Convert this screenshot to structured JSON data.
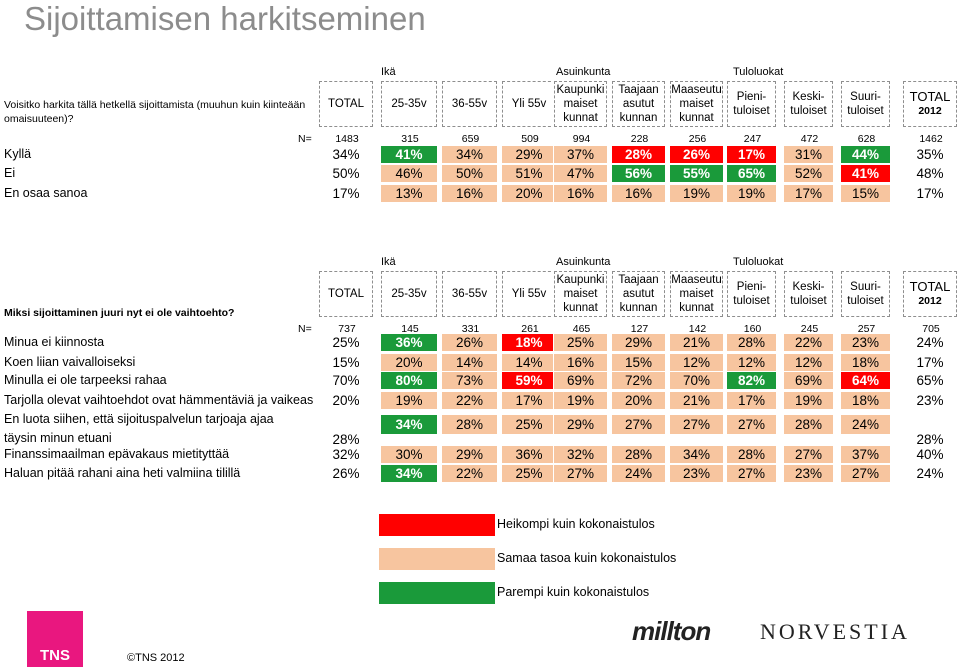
{
  "title": "Sijoittamisen harkitseminen",
  "groups": {
    "age": "Ikä",
    "residence": "Asuinkunta",
    "income": "Tuloluokat"
  },
  "columns": {
    "total": "TOTAL",
    "a1": "25-35v",
    "a2": "36-55v",
    "a3": "Yli 55v",
    "r1": [
      "Kaupunki",
      "maiset",
      "kunnat"
    ],
    "r2": [
      "Taajaan",
      "asutut",
      "kunnan"
    ],
    "r3": [
      "Maaseutu",
      "maiset",
      "kunnat"
    ],
    "i1": [
      "Pieni-",
      "tuloiset"
    ],
    "i2": [
      "Keski-",
      "tuloiset"
    ],
    "i3": [
      "Suuri-",
      "tuloiset"
    ],
    "total2012": [
      "TOTAL",
      "2012"
    ]
  },
  "table1": {
    "question": "Voisitko harkita tällä hetkellä sijoittamista (muuhun kuin kiinteään omaisuuteen)?",
    "n_label": "N=",
    "n": [
      "1483",
      "315",
      "659",
      "509",
      "994",
      "228",
      "256",
      "247",
      "472",
      "628",
      "1462"
    ],
    "rows": [
      {
        "label": "Kyllä",
        "values": [
          "34%",
          "41%",
          "34%",
          "29%",
          "37%",
          "28%",
          "26%",
          "17%",
          "31%",
          "44%",
          "35%"
        ],
        "styles": [
          "n",
          "g",
          "b",
          "b",
          "b",
          "r",
          "r",
          "r",
          "b",
          "g",
          "n"
        ]
      },
      {
        "label": "Ei",
        "values": [
          "50%",
          "46%",
          "50%",
          "51%",
          "47%",
          "56%",
          "55%",
          "65%",
          "52%",
          "41%",
          "48%"
        ],
        "styles": [
          "n",
          "b",
          "b",
          "b",
          "b",
          "g",
          "g",
          "g",
          "b",
          "r",
          "n"
        ]
      },
      {
        "label": "En osaa sanoa",
        "values": [
          "17%",
          "13%",
          "16%",
          "20%",
          "16%",
          "16%",
          "19%",
          "19%",
          "17%",
          "15%",
          "17%"
        ],
        "styles": [
          "n",
          "b",
          "b",
          "b",
          "b",
          "b",
          "b",
          "b",
          "b",
          "b",
          "n"
        ]
      }
    ]
  },
  "table2": {
    "question": "Miksi sijoittaminen juuri nyt ei ole vaihtoehto?",
    "n_label": "N=",
    "n": [
      "737",
      "145",
      "331",
      "261",
      "465",
      "127",
      "142",
      "160",
      "245",
      "257",
      "705"
    ],
    "rows": [
      {
        "label": "Minua ei kiinnosta",
        "values": [
          "25%",
          "36%",
          "26%",
          "18%",
          "25%",
          "29%",
          "21%",
          "28%",
          "22%",
          "23%",
          "24%"
        ],
        "styles": [
          "n",
          "g",
          "b",
          "r",
          "b",
          "b",
          "b",
          "b",
          "b",
          "b",
          "n"
        ]
      },
      {
        "label": "Koen liian vaivalloiseksi",
        "values": [
          "15%",
          "20%",
          "14%",
          "14%",
          "16%",
          "15%",
          "12%",
          "12%",
          "12%",
          "18%",
          "17%"
        ],
        "styles": [
          "n",
          "b",
          "b",
          "b",
          "b",
          "b",
          "b",
          "b",
          "b",
          "b",
          "n"
        ]
      },
      {
        "label": "Minulla ei ole tarpeeksi rahaa",
        "values": [
          "70%",
          "80%",
          "73%",
          "59%",
          "69%",
          "72%",
          "70%",
          "82%",
          "69%",
          "64%",
          "65%"
        ],
        "styles": [
          "n",
          "g",
          "b",
          "r",
          "b",
          "b",
          "b",
          "g",
          "b",
          "r",
          "n"
        ]
      },
      {
        "label": "Tarjolla olevat vaihtoehdot ovat hämmentäviä ja vaikeas",
        "values": [
          "20%",
          "19%",
          "22%",
          "17%",
          "19%",
          "20%",
          "21%",
          "17%",
          "19%",
          "18%",
          "23%"
        ],
        "styles": [
          "n",
          "b",
          "b",
          "b",
          "b",
          "b",
          "b",
          "b",
          "b",
          "b",
          "n"
        ]
      },
      {
        "label": "En luota siihen, että sijoituspalvelun tarjoaja ajaa täysin minun etuani",
        "values": [
          "28%",
          "34%",
          "28%",
          "25%",
          "29%",
          "27%",
          "27%",
          "27%",
          "28%",
          "24%",
          "28%"
        ],
        "styles": [
          "n",
          "g",
          "b",
          "b",
          "b",
          "b",
          "b",
          "b",
          "b",
          "b",
          "n"
        ]
      },
      {
        "label": "Finanssimaailman epävakaus mietityttää",
        "values": [
          "32%",
          "30%",
          "29%",
          "36%",
          "32%",
          "28%",
          "34%",
          "28%",
          "27%",
          "37%",
          "40%"
        ],
        "styles": [
          "n",
          "b",
          "b",
          "b",
          "b",
          "b",
          "b",
          "b",
          "b",
          "b",
          "n"
        ]
      },
      {
        "label": "Haluan pitää rahani aina heti valmiina tilillä",
        "values": [
          "26%",
          "34%",
          "22%",
          "25%",
          "27%",
          "24%",
          "23%",
          "27%",
          "23%",
          "27%",
          "24%"
        ],
        "styles": [
          "n",
          "g",
          "b",
          "b",
          "b",
          "b",
          "b",
          "b",
          "b",
          "b",
          "n"
        ]
      }
    ]
  },
  "legend": [
    {
      "label": "Heikompi kuin kokonaistulos",
      "color": "#ff0000"
    },
    {
      "label": "Samaa tasoa kuin kokonaistulos",
      "color": "#f7c59f"
    },
    {
      "label": "Parempi kuin kokonaistulos",
      "color": "#1a9a3a"
    }
  ],
  "footer": {
    "tns": "TNS",
    "copyright": "©TNS 2012",
    "brand1": "millton",
    "brand2": "NORVESTIA"
  }
}
